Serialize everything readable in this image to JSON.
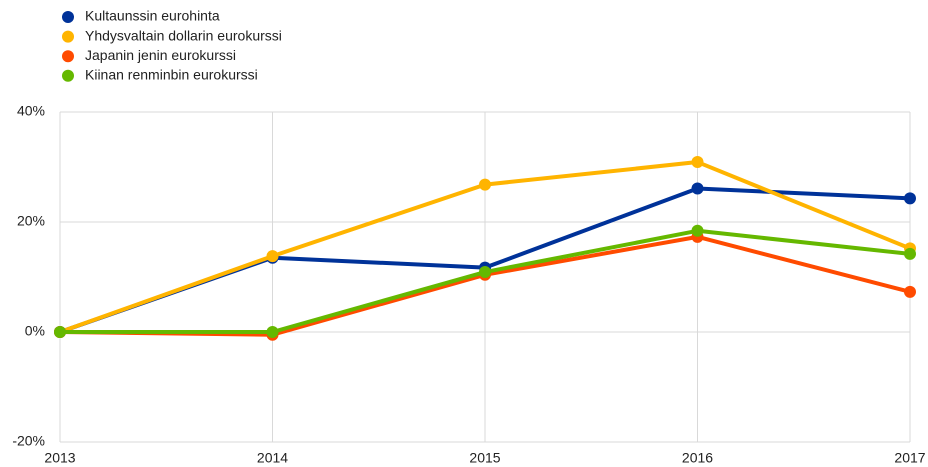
{
  "chart_data": {
    "type": "line",
    "x": [
      2013,
      2014,
      2015,
      2016,
      2017
    ],
    "xlim": [
      2013,
      2017
    ],
    "xticks": [
      2013,
      2014,
      2015,
      2016,
      2017
    ],
    "ylim": [
      -20,
      40
    ],
    "yticks": [
      {
        "value": -20,
        "label": "-20%"
      },
      {
        "value": 0,
        "label": "0%"
      },
      {
        "value": 20,
        "label": "20%"
      },
      {
        "value": 40,
        "label": "40%"
      }
    ],
    "grid": true,
    "legend": "top-left",
    "series": [
      {
        "name": "Kultaunssin eurohinta",
        "color": "#003299",
        "values": [
          0,
          13.5,
          11.7,
          26.1,
          24.3
        ]
      },
      {
        "name": "Yhdysvaltain dollarin eurokurssi",
        "color": "#ffb400",
        "values": [
          0,
          13.8,
          26.8,
          30.9,
          15.2
        ]
      },
      {
        "name": "Japanin jenin eurokurssi",
        "color": "#ff4b00",
        "values": [
          0,
          -0.5,
          10.4,
          17.3,
          7.3
        ]
      },
      {
        "name": "Kiinan renminbin eurokurssi",
        "color": "#65b800",
        "values": [
          0,
          0,
          10.9,
          18.4,
          14.2
        ]
      }
    ]
  }
}
